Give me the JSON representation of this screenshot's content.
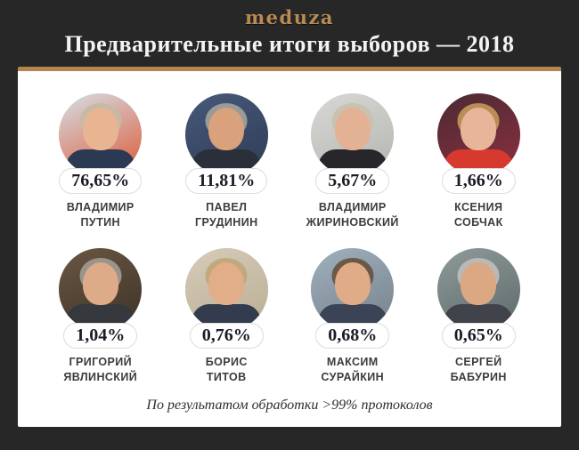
{
  "header": {
    "logo": "meduza",
    "title": "Предварительные итоги выборов — 2018"
  },
  "colors": {
    "background": "#272727",
    "card": "#ffffff",
    "accent_gold_border": "#b5854f",
    "logo_gold": "#b88a54",
    "title_text": "#f3f3f3",
    "percent_text": "#1c1c28",
    "badge_border": "#dcdcdc",
    "name_text": "#3c3c3c",
    "footnote_text": "#2e2e2e"
  },
  "candidates": [
    {
      "name_line1": "ВЛАДИМИР",
      "name_line2": "ПУТИН",
      "percent": "76,65%",
      "photo": {
        "bg_top": "#d5dfe8",
        "bg_bottom": "#dc5a35",
        "hair": "#c9b9a4",
        "skin": "#e8b492",
        "suit": "#2b3a52"
      }
    },
    {
      "name_line1": "ПАВЕЛ",
      "name_line2": "ГРУДИНИН",
      "percent": "11,81%",
      "photo": {
        "bg_top": "#47597a",
        "bg_bottom": "#2e3c55",
        "hair": "#9a9a98",
        "skin": "#d9a17c",
        "suit": "#2a2f3a"
      }
    },
    {
      "name_line1": "ВЛАДИМИР",
      "name_line2": "ЖИРИНОВСКИЙ",
      "percent": "5,67%",
      "photo": {
        "bg_top": "#d8d8d6",
        "bg_bottom": "#b4b4b0",
        "hair": "#c9c2b2",
        "skin": "#e3b294",
        "suit": "#27272b"
      }
    },
    {
      "name_line1": "КСЕНИЯ",
      "name_line2": "СОБЧАК",
      "percent": "1,66%",
      "photo": {
        "bg_top": "#4a2b33",
        "bg_bottom": "#8c2f3f",
        "hair": "#b98d55",
        "skin": "#e6b59a",
        "suit": "#d7392f"
      }
    },
    {
      "name_line1": "ГРИГОРИЙ",
      "name_line2": "ЯВЛИНСКИЙ",
      "percent": "1,04%",
      "photo": {
        "bg_top": "#6a5742",
        "bg_bottom": "#3c3328",
        "hair": "#9b948a",
        "skin": "#ddab88",
        "suit": "#35383c"
      }
    },
    {
      "name_line1": "БОРИС",
      "name_line2": "ТИТОВ",
      "percent": "0,76%",
      "photo": {
        "bg_top": "#d6ccb9",
        "bg_bottom": "#b9ad93",
        "hair": "#c1a97e",
        "skin": "#e2ad89",
        "suit": "#323c4e"
      }
    },
    {
      "name_line1": "МАКСИМ",
      "name_line2": "СУРАЙКИН",
      "percent": "0,68%",
      "photo": {
        "bg_top": "#9fb0bd",
        "bg_bottom": "#76828c",
        "hair": "#6b5948",
        "skin": "#e0ab87",
        "suit": "#3a4456"
      }
    },
    {
      "name_line1": "СЕРГЕЙ",
      "name_line2": "БАБУРИН",
      "percent": "0,65%",
      "photo": {
        "bg_top": "#8f9b9b",
        "bg_bottom": "#5e6a6a",
        "hair": "#b9b9b7",
        "skin": "#dca884",
        "suit": "#41434a"
      }
    }
  ],
  "footer": {
    "note": "По результатом обработки >99% протоколов"
  },
  "chart_data": {
    "type": "table",
    "title": "Предварительные итоги выборов — 2018",
    "unit": "%",
    "categories": [
      "Владимир Путин",
      "Павел Грудинин",
      "Владимир Жириновский",
      "Ксения Собчак",
      "Григорий Явлинский",
      "Борис Титов",
      "Максим Сурайкин",
      "Сергей Бабурин"
    ],
    "values": [
      76.65,
      11.81,
      5.67,
      1.66,
      1.04,
      0.76,
      0.68,
      0.65
    ],
    "note": "По результатом обработки >99% протоколов"
  }
}
